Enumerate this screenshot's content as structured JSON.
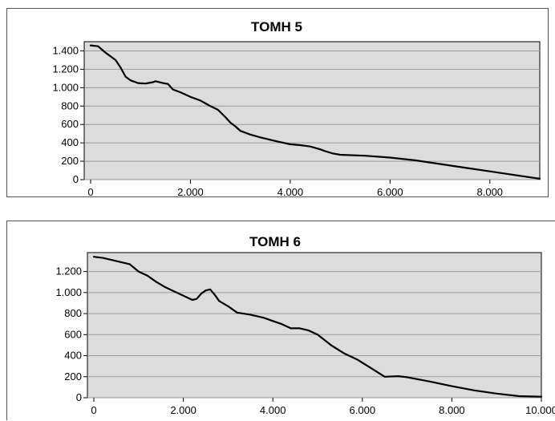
{
  "chart_data": [
    {
      "type": "line",
      "title": "TOMH 5",
      "xlabel": "",
      "ylabel": "",
      "xlim": [
        0,
        9000
      ],
      "ylim": [
        0,
        1500
      ],
      "grid": true,
      "xticks": [
        0,
        2000,
        4000,
        6000,
        8000
      ],
      "xtick_labels": [
        "0",
        "2.000",
        "4.000",
        "6.000",
        "8.000"
      ],
      "yticks": [
        0,
        200,
        400,
        600,
        800,
        1000,
        1200,
        1400
      ],
      "ytick_labels": [
        "0",
        "200",
        "400",
        "600",
        "800",
        "1.000",
        "1.200",
        "1.400"
      ],
      "series": [
        {
          "color": "#000000",
          "x": [
            0,
            150,
            300,
            500,
            600,
            700,
            800,
            950,
            1100,
            1250,
            1300,
            1450,
            1550,
            1650,
            1800,
            2000,
            2200,
            2400,
            2550,
            2700,
            2800,
            2900,
            3000,
            3200,
            3400,
            3700,
            4000,
            4200,
            4400,
            4600,
            4700,
            4850,
            5000,
            5500,
            6000,
            6500,
            7000,
            7500,
            8000,
            8500,
            9000
          ],
          "y": [
            1460,
            1450,
            1380,
            1300,
            1220,
            1120,
            1080,
            1050,
            1045,
            1060,
            1070,
            1050,
            1040,
            980,
            950,
            900,
            860,
            800,
            760,
            680,
            620,
            580,
            530,
            490,
            460,
            420,
            385,
            375,
            360,
            330,
            310,
            285,
            270,
            260,
            240,
            210,
            170,
            130,
            90,
            50,
            10
          ]
        }
      ]
    },
    {
      "type": "line",
      "title": "TOMH 6",
      "xlabel": "",
      "ylabel": "",
      "xlim": [
        0,
        10000
      ],
      "ylim": [
        0,
        1380
      ],
      "grid": true,
      "xticks": [
        0,
        2000,
        4000,
        6000,
        8000,
        10000
      ],
      "xtick_labels": [
        "0",
        "2.000",
        "4.000",
        "6.000",
        "8.000",
        "10.000"
      ],
      "yticks": [
        0,
        200,
        400,
        600,
        800,
        1000,
        1200
      ],
      "ytick_labels": [
        "0",
        "200",
        "400",
        "600",
        "800",
        "1.000",
        "1.200"
      ],
      "series": [
        {
          "color": "#000000",
          "x": [
            0,
            200,
            400,
            600,
            800,
            1000,
            1200,
            1400,
            1600,
            1800,
            2000,
            2200,
            2300,
            2400,
            2500,
            2600,
            2700,
            2800,
            3000,
            3200,
            3500,
            3800,
            4000,
            4200,
            4400,
            4600,
            4800,
            5000,
            5300,
            5600,
            5900,
            6200,
            6500,
            6800,
            7000,
            7500,
            8000,
            8500,
            9000,
            9500,
            10000
          ],
          "y": [
            1340,
            1330,
            1310,
            1290,
            1270,
            1200,
            1160,
            1100,
            1050,
            1010,
            970,
            930,
            940,
            990,
            1020,
            1030,
            980,
            920,
            870,
            810,
            790,
            760,
            730,
            700,
            660,
            660,
            640,
            600,
            500,
            420,
            360,
            280,
            200,
            205,
            195,
            155,
            110,
            70,
            40,
            15,
            10
          ]
        }
      ]
    }
  ]
}
